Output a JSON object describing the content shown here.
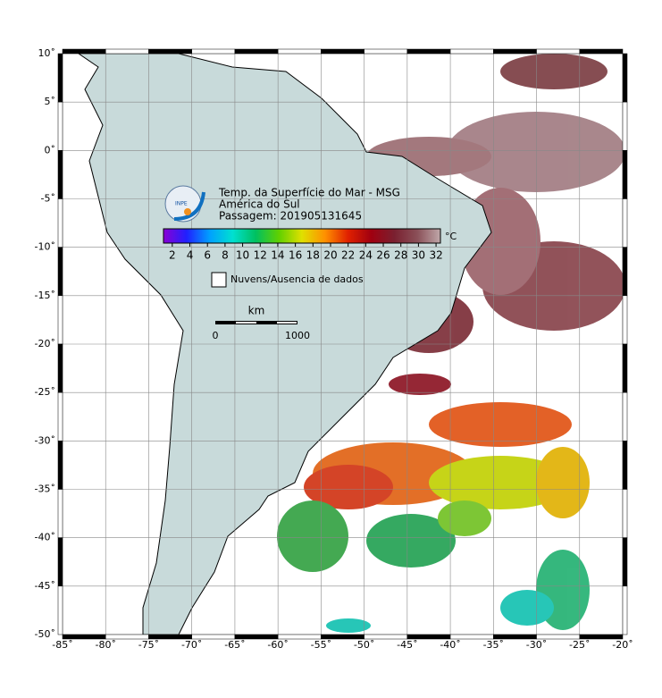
{
  "logo": "INPE",
  "title_lines": [
    "Temp. da Superfície do Mar - MSG",
    "América do Sul",
    "Passagem: 201905131645"
  ],
  "colorbar": {
    "range": [
      1,
      32.5
    ],
    "ticks": [
      2,
      4,
      6,
      8,
      10,
      12,
      14,
      16,
      18,
      20,
      22,
      24,
      26,
      28,
      30,
      32
    ],
    "unit": "°C",
    "colors": [
      "#8a00d4",
      "#2020ff",
      "#00a0ff",
      "#00e0d0",
      "#00c060",
      "#60d000",
      "#e0e000",
      "#ff9000",
      "#e02000",
      "#a00010",
      "#7a2030",
      "#8a5058",
      "#c0a8aa"
    ]
  },
  "legend": {
    "label": "Nuvens/Ausencia de dados"
  },
  "scale_bar": {
    "unit": "km",
    "labels": [
      0,
      1000
    ]
  },
  "map": {
    "lon_range": [
      -85,
      -20
    ],
    "lat_range": [
      -50,
      10
    ],
    "lon_ticks": [
      {
        "value": -85,
        "label": "-85˚"
      },
      {
        "value": -80,
        "label": "-80˚"
      },
      {
        "value": -75,
        "label": "-75˚"
      },
      {
        "value": -70,
        "label": "-70˚"
      },
      {
        "value": -65,
        "label": "-65˚"
      },
      {
        "value": -60,
        "label": "-60˚"
      },
      {
        "value": -55,
        "label": "-55˚"
      },
      {
        "value": -50,
        "label": "-50˚"
      },
      {
        "value": -45,
        "label": "-45˚"
      },
      {
        "value": -40,
        "label": "-40˚"
      },
      {
        "value": -35,
        "label": "-35˚"
      },
      {
        "value": -30,
        "label": "-30˚"
      },
      {
        "value": -25,
        "label": "-25˚"
      },
      {
        "value": -20,
        "label": "-20˚"
      }
    ],
    "lat_ticks": [
      {
        "value": 10,
        "label": "10˚"
      },
      {
        "value": 5,
        "label": "5˚"
      },
      {
        "value": 0,
        "label": "0˚"
      },
      {
        "value": -5,
        "label": "-5˚"
      },
      {
        "value": -10,
        "label": "-10˚"
      },
      {
        "value": -15,
        "label": "-15˚"
      },
      {
        "value": -20,
        "label": "-20˚"
      },
      {
        "value": -25,
        "label": "-25˚"
      },
      {
        "value": -30,
        "label": "-30˚"
      },
      {
        "value": -35,
        "label": "-35˚"
      },
      {
        "value": -40,
        "label": "-40˚"
      },
      {
        "value": -45,
        "label": "-45˚"
      },
      {
        "value": -50,
        "label": "-50˚"
      }
    ]
  }
}
